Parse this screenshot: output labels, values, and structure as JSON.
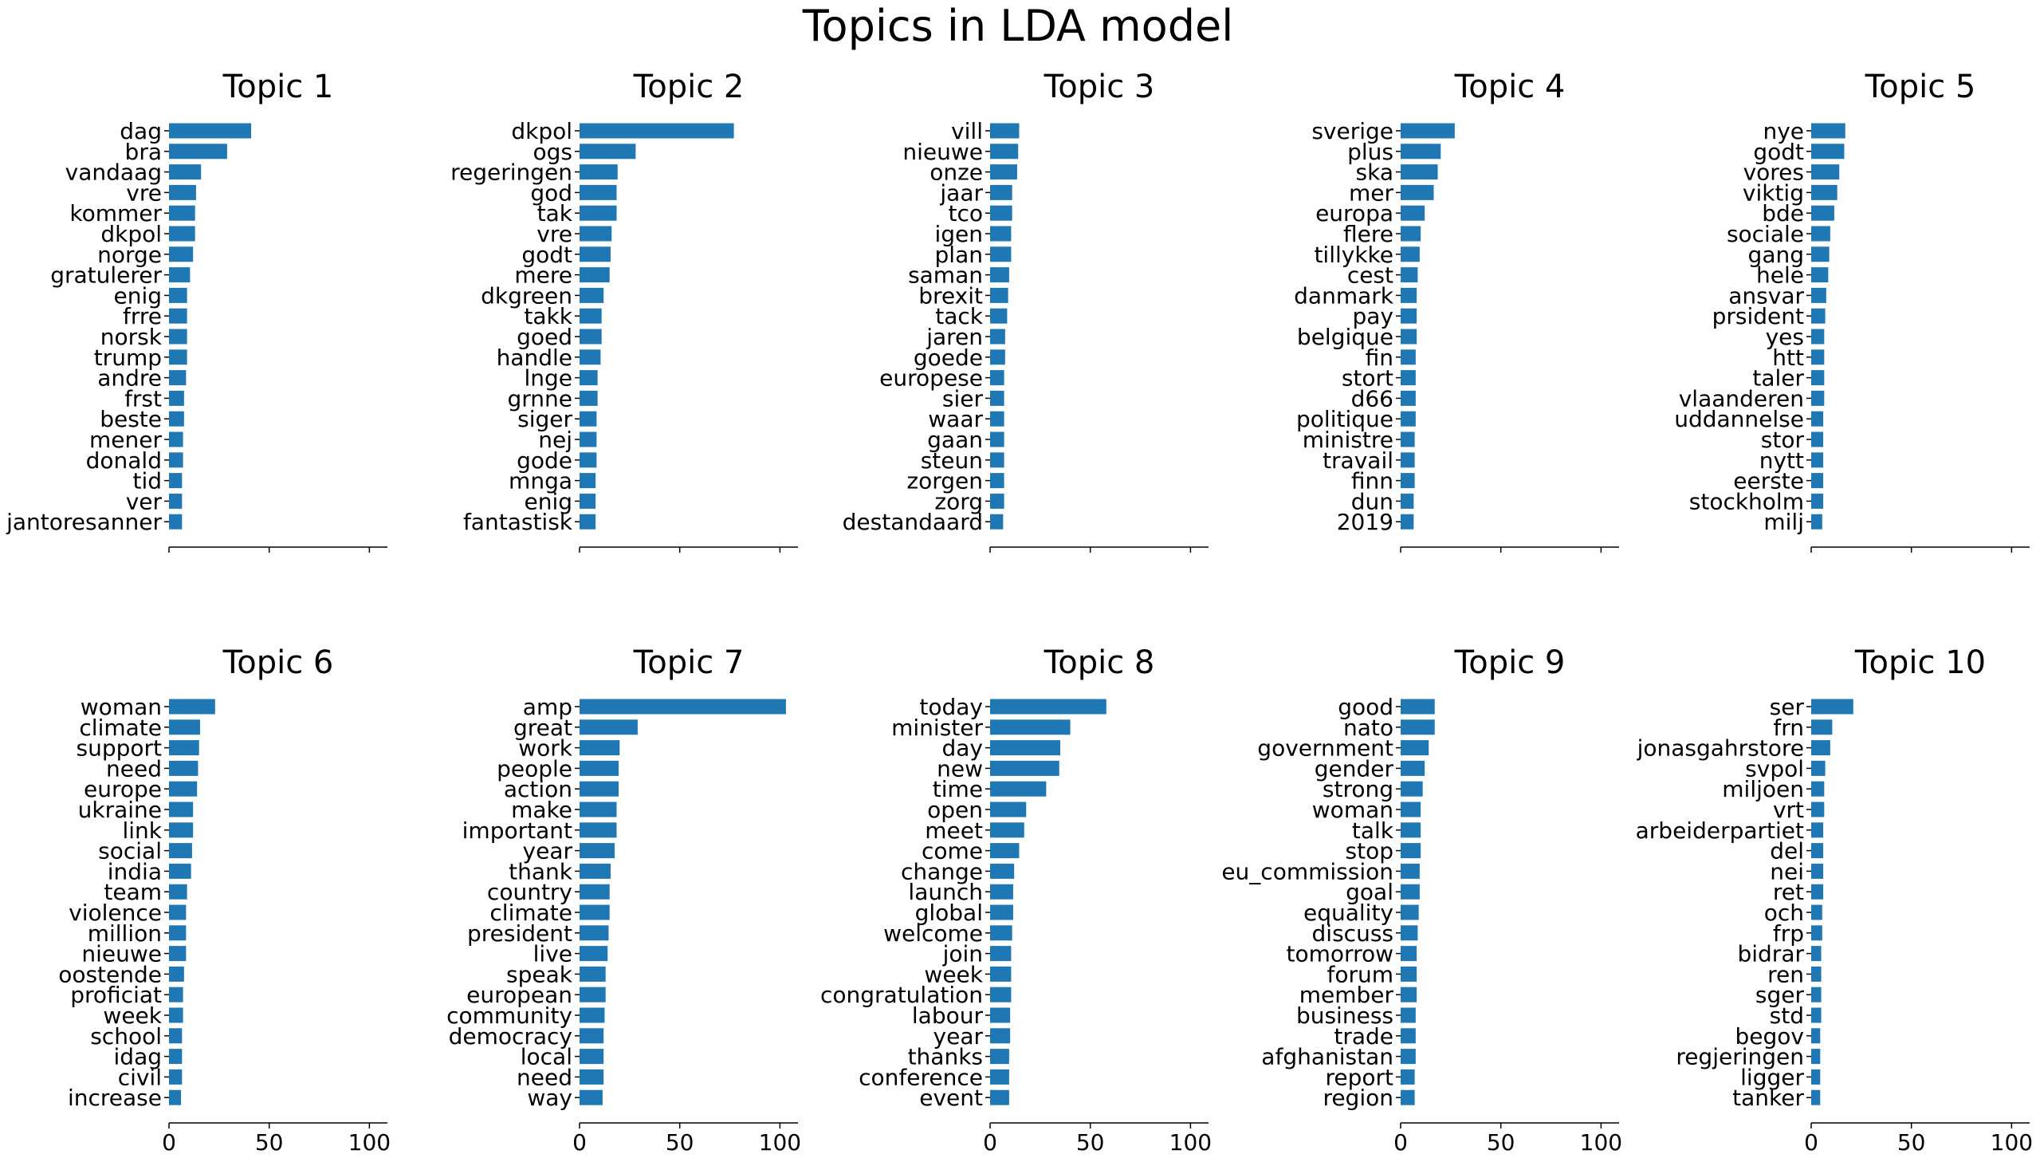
{
  "chart_data": {
    "type": "bar",
    "orientation": "horizontal",
    "title": "Topics in LDA model",
    "bar_color": "#1f77b4",
    "xlim": [
      0,
      109
    ],
    "xticks": [
      0,
      50,
      100
    ],
    "xtick_labels_shown_on_bottom_row_only": true,
    "grid": false,
    "legend": "none",
    "panels": [
      {
        "title": "Topic 1",
        "categories": [
          "dag",
          "bra",
          "vandaag",
          "vre",
          "kommer",
          "dkpol",
          "norge",
          "gratulerer",
          "enig",
          "frre",
          "norsk",
          "trump",
          "andre",
          "frst",
          "beste",
          "mener",
          "donald",
          "tid",
          "ver",
          "jantoresanner"
        ],
        "values": [
          41,
          29,
          16,
          13.5,
          13,
          13,
          12,
          10.5,
          9,
          9,
          9,
          9,
          8.5,
          7.5,
          7.5,
          7,
          7,
          6.5,
          6.5,
          6.5
        ]
      },
      {
        "title": "Topic 2",
        "categories": [
          "dkpol",
          "ogs",
          "regeringen",
          "god",
          "tak",
          "vre",
          "godt",
          "mere",
          "dkgreen",
          "takk",
          "goed",
          "handle",
          "lnge",
          "grnne",
          "siger",
          "nej",
          "gode",
          "mnga",
          "enig",
          "fantastisk"
        ],
        "values": [
          77,
          28,
          19,
          18.5,
          18.5,
          16,
          15.5,
          15,
          12,
          11,
          11,
          10.5,
          9,
          9,
          8.5,
          8.5,
          8.5,
          8,
          8,
          8
        ]
      },
      {
        "title": "Topic 3",
        "categories": [
          "vill",
          "nieuwe",
          "onze",
          "jaar",
          "tco",
          "igen",
          "plan",
          "saman",
          "brexit",
          "tack",
          "jaren",
          "goede",
          "europese",
          "sier",
          "waar",
          "gaan",
          "steun",
          "zorgen",
          "zorg",
          "destandaard"
        ],
        "values": [
          14.5,
          14,
          13.5,
          11,
          11,
          10.5,
          10.5,
          9.5,
          9,
          8.5,
          7.5,
          7.5,
          7,
          7,
          7,
          7,
          7,
          7,
          7,
          6.5
        ]
      },
      {
        "title": "Topic 4",
        "categories": [
          "sverige",
          "plus",
          "ska",
          "mer",
          "europa",
          "flere",
          "tillykke",
          "cest",
          "danmark",
          "pay",
          "belgique",
          "fin",
          "stort",
          "d66",
          "politique",
          "ministre",
          "travail",
          "finn",
          "dun",
          "2019"
        ],
        "values": [
          27,
          20,
          18.5,
          16.5,
          12,
          10,
          9.5,
          8.5,
          8,
          8,
          8,
          7.5,
          7.5,
          7.5,
          7.5,
          7,
          7,
          7,
          6.5,
          6.5
        ]
      },
      {
        "title": "Topic 5",
        "categories": [
          "nye",
          "godt",
          "vores",
          "viktig",
          "bde",
          "sociale",
          "gang",
          "hele",
          "ansvar",
          "prsident",
          "yes",
          "htt",
          "taler",
          "vlaanderen",
          "uddannelse",
          "stor",
          "nytt",
          "eerste",
          "stockholm",
          "milj"
        ],
        "values": [
          17,
          16.5,
          14,
          13,
          11.5,
          9.5,
          9,
          8.5,
          7.5,
          7,
          6.5,
          6.5,
          6.5,
          6.5,
          6,
          6,
          6,
          6,
          6,
          5.5
        ]
      },
      {
        "title": "Topic 6",
        "categories": [
          "woman",
          "climate",
          "support",
          "need",
          "europe",
          "ukraine",
          "link",
          "social",
          "india",
          "team",
          "violence",
          "million",
          "nieuwe",
          "oostende",
          "proficiat",
          "week",
          "school",
          "idag",
          "civil",
          "increase"
        ],
        "values": [
          23,
          15.5,
          15,
          14.5,
          14,
          12,
          12,
          11.5,
          11,
          9,
          8.5,
          8.5,
          8.5,
          7.5,
          7,
          7,
          6.5,
          6.5,
          6.5,
          6
        ]
      },
      {
        "title": "Topic 7",
        "categories": [
          "amp",
          "great",
          "work",
          "people",
          "action",
          "make",
          "important",
          "year",
          "thank",
          "country",
          "climate",
          "president",
          "live",
          "speak",
          "european",
          "community",
          "democracy",
          "local",
          "need",
          "way"
        ],
        "values": [
          103,
          29,
          20,
          19.5,
          19.5,
          18.5,
          18.5,
          17.5,
          15.5,
          15,
          15,
          14.5,
          14,
          13,
          13,
          12.5,
          12,
          12,
          12,
          11.5
        ]
      },
      {
        "title": "Topic 8",
        "categories": [
          "today",
          "minister",
          "day",
          "new",
          "time",
          "open",
          "meet",
          "come",
          "change",
          "launch",
          "global",
          "welcome",
          "join",
          "week",
          "congratulation",
          "labour",
          "year",
          "thanks",
          "conference",
          "event"
        ],
        "values": [
          58,
          40,
          35,
          34.5,
          28,
          18,
          17,
          14.5,
          12,
          11.5,
          11.5,
          11,
          10.5,
          10.5,
          10.5,
          10,
          10,
          9.5,
          9.5,
          9.5
        ]
      },
      {
        "title": "Topic 9",
        "categories": [
          "good",
          "nato",
          "government",
          "gender",
          "strong",
          "woman",
          "talk",
          "stop",
          "eu_commission",
          "goal",
          "equality",
          "discuss",
          "tomorrow",
          "forum",
          "member",
          "business",
          "trade",
          "afghanistan",
          "report",
          "region"
        ],
        "values": [
          17,
          17,
          14,
          12,
          11,
          10,
          10,
          10,
          9.5,
          9.5,
          9,
          8.5,
          8,
          8,
          8,
          7.5,
          7.5,
          7.5,
          7,
          7
        ]
      },
      {
        "title": "Topic 10",
        "categories": [
          "ser",
          "frn",
          "jonasgahrstore",
          "svpol",
          "miljoen",
          "vrt",
          "arbeiderpartiet",
          "del",
          "nei",
          "ret",
          "och",
          "frp",
          "bidrar",
          "ren",
          "sger",
          "std",
          "begov",
          "regjeringen",
          "ligger",
          "tanker"
        ],
        "values": [
          21,
          10.5,
          9.5,
          7,
          6.5,
          6.5,
          6,
          6,
          6,
          6,
          5.5,
          5.5,
          5,
          5,
          5,
          5,
          4.5,
          4.5,
          4.5,
          4.5
        ]
      }
    ]
  }
}
